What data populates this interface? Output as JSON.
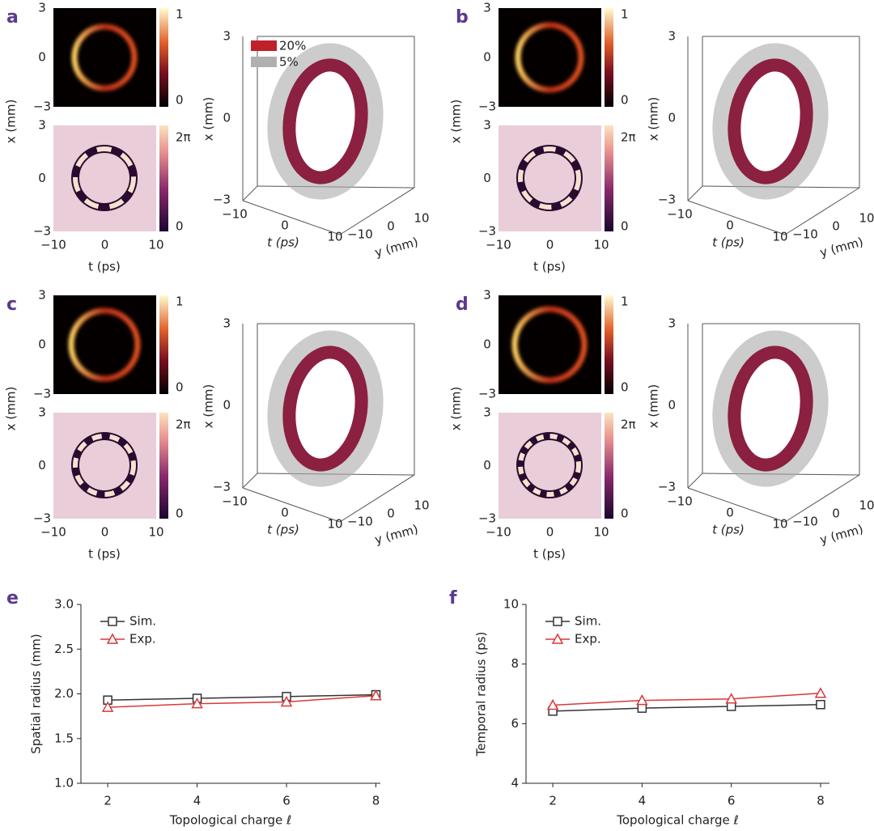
{
  "panels": [
    {
      "label": "a",
      "ylabel": "x (mm)",
      "intensity_yticks": [
        "3",
        "0",
        "−3"
      ],
      "intensity_cbar": [
        "1",
        "0"
      ],
      "phase_yticks": [
        "3",
        "0",
        "−3"
      ],
      "phase_xticks": [
        "−10",
        "0",
        "10"
      ],
      "xlabel": "t (ps)",
      "phase_cbar": [
        "2π",
        "0"
      ],
      "volume": {
        "zticks": [
          "3",
          "0",
          "−3"
        ],
        "zlabel": "x (mm)",
        "tticks": [
          "−10",
          "0",
          "10"
        ],
        "tlabel": "t (ps)",
        "yticks": [
          "−10",
          "0",
          "10"
        ],
        "ylabel": "y (mm)",
        "legend": [
          "20%",
          "5%"
        ]
      }
    },
    {
      "label": "b",
      "ylabel": "x (mm)",
      "intensity_yticks": [
        "3",
        "0",
        "−3"
      ],
      "intensity_cbar": [
        "1",
        "0"
      ],
      "phase_yticks": [
        "3",
        "0",
        "−3"
      ],
      "phase_xticks": [
        "−10",
        "0",
        "10"
      ],
      "xlabel": "t (ps)",
      "phase_cbar": [
        "2π",
        "0"
      ],
      "volume": {
        "zticks": [
          "3",
          "0",
          "−3"
        ],
        "zlabel": "x (mm)",
        "tticks": [
          "−10",
          "0",
          "10"
        ],
        "tlabel": "t (ps)",
        "yticks": [
          "−10",
          "0",
          "10"
        ],
        "ylabel": "y (mm)"
      }
    },
    {
      "label": "c",
      "ylabel": "x (mm)",
      "intensity_yticks": [
        "3",
        "0",
        "−3"
      ],
      "intensity_cbar": [
        "1",
        "0"
      ],
      "phase_yticks": [
        "3",
        "0",
        "−3"
      ],
      "phase_xticks": [
        "−10",
        "0",
        "10"
      ],
      "xlabel": "t (ps)",
      "phase_cbar": [
        "2π",
        "0"
      ],
      "volume": {
        "zticks": [
          "3",
          "0",
          "−3"
        ],
        "zlabel": "x (mm)",
        "tticks": [
          "−10",
          "0",
          "10"
        ],
        "tlabel": "t (ps)",
        "yticks": [
          "−10",
          "0",
          "10"
        ],
        "ylabel": "y (mm)"
      }
    },
    {
      "label": "d",
      "ylabel": "x (mm)",
      "intensity_yticks": [
        "3",
        "0",
        "−3"
      ],
      "intensity_cbar": [
        "1",
        "0"
      ],
      "phase_yticks": [
        "3",
        "0",
        "−3"
      ],
      "phase_xticks": [
        "−10",
        "0",
        "10"
      ],
      "xlabel": "t (ps)",
      "phase_cbar": [
        "2π",
        "0"
      ],
      "volume": {
        "zticks": [
          "3",
          "0",
          "−3"
        ],
        "zlabel": "x (mm)",
        "tticks": [
          "−10",
          "0",
          "10"
        ],
        "tlabel": "t (ps)",
        "yticks": [
          "−10",
          "0",
          "10"
        ],
        "ylabel": "y (mm)"
      }
    }
  ],
  "chart_data": [
    {
      "type": "line",
      "label": "e",
      "x": [
        2,
        4,
        6,
        8
      ],
      "xlim": [
        1.4,
        8.1
      ],
      "xticks": [
        2,
        4,
        6,
        8
      ],
      "xlabel": "Topological charge ℓ",
      "ylabel": "Spatial radius (mm)",
      "ylim": [
        1.0,
        3.0
      ],
      "yticks": [
        {
          "value": 1.0,
          "label": "1.0"
        },
        {
          "value": 1.5,
          "label": "1.5"
        },
        {
          "value": 2.0,
          "label": "2.0"
        },
        {
          "value": 2.5,
          "label": "2.5"
        },
        {
          "value": 3.0,
          "label": "3.0"
        }
      ],
      "series": [
        {
          "name": "Sim.",
          "color": "#333333",
          "marker": "square",
          "values": [
            1.93,
            1.95,
            1.97,
            1.99
          ]
        },
        {
          "name": "Exp.",
          "color": "#d9383a",
          "marker": "triangle",
          "values": [
            1.85,
            1.89,
            1.91,
            1.98
          ]
        }
      ]
    },
    {
      "type": "line",
      "label": "f",
      "x": [
        2,
        4,
        6,
        8
      ],
      "xlim": [
        1.4,
        8.2
      ],
      "xticks": [
        2,
        4,
        6,
        8
      ],
      "xlabel": "Topological charge ℓ",
      "ylabel": "Temporal radius (ps)",
      "ylim": [
        4,
        10
      ],
      "yticks": [
        4,
        6,
        8,
        10
      ],
      "series": [
        {
          "name": "Sim.",
          "color": "#333333",
          "marker": "square",
          "values": [
            6.42,
            6.52,
            6.58,
            6.64
          ]
        },
        {
          "name": "Exp.",
          "color": "#d9383a",
          "marker": "triangle",
          "values": [
            6.62,
            6.78,
            6.83,
            7.02
          ]
        }
      ]
    }
  ]
}
